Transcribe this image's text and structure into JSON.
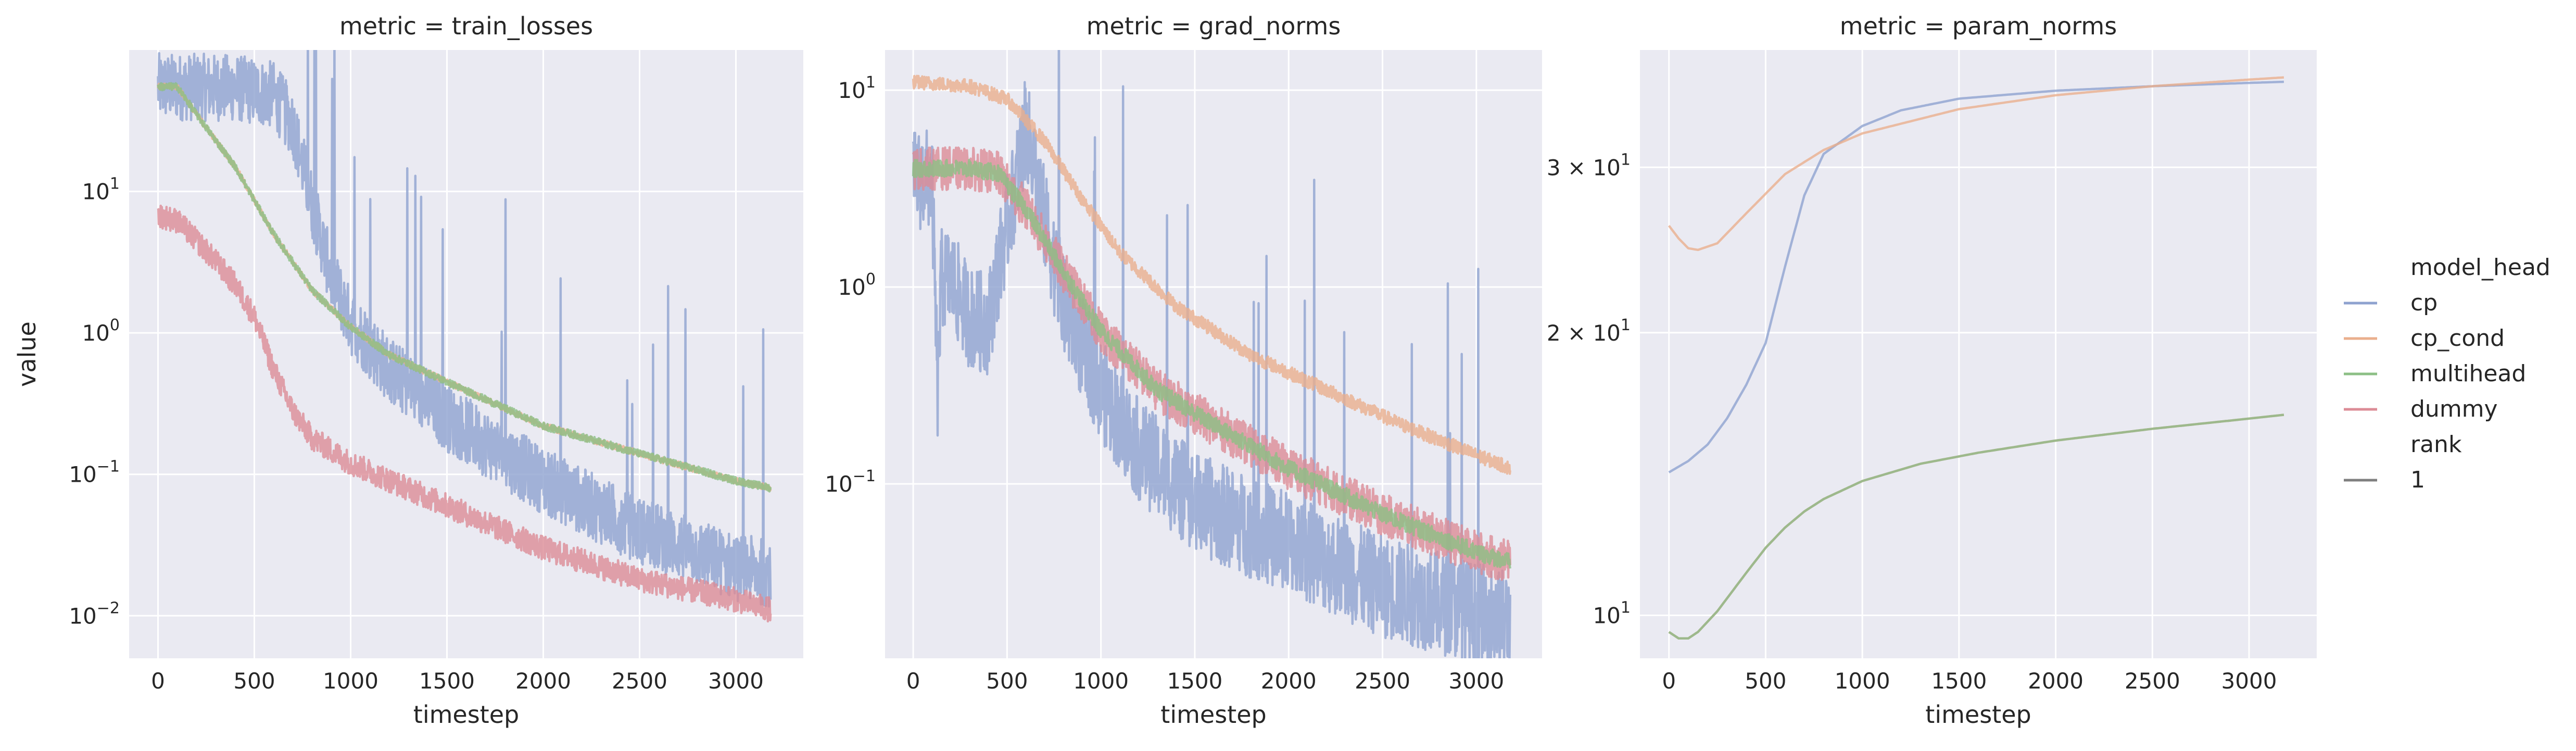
{
  "figure": {
    "panel_title_prefix": "metric = ",
    "legend": {
      "hue_title": "model_head",
      "hue_items": [
        {
          "label": "cp",
          "color": "#8ea2cf"
        },
        {
          "label": "cp_cond",
          "color": "#eaaf8d"
        },
        {
          "label": "multihead",
          "color": "#8cbf85"
        },
        {
          "label": "dummy",
          "color": "#dc8c96"
        }
      ],
      "style_title": "rank",
      "style_items": [
        {
          "label": "1",
          "color": "#7f7f7f"
        }
      ],
      "placement": "right"
    },
    "background": "#eaeaf2",
    "grid_color": "#ffffff"
  },
  "chart_data": [
    {
      "type": "line",
      "title": "metric = train_losses",
      "metric": "train_losses",
      "xlabel": "timestep",
      "ylabel": "value",
      "yscale": "log",
      "xlim": [
        -150,
        3350
      ],
      "ylim": [
        0.005,
        100
      ],
      "xticks": [
        0,
        500,
        1000,
        1500,
        2000,
        2500,
        3000
      ],
      "yticks": [
        {
          "value": 0.01,
          "mant": "",
          "base": "10",
          "exp": "−2"
        },
        {
          "value": 0.1,
          "mant": "",
          "base": "10",
          "exp": "−1"
        },
        {
          "value": 1,
          "mant": "",
          "base": "10",
          "exp": "0"
        },
        {
          "value": 10,
          "mant": "",
          "base": "10",
          "exp": "1"
        }
      ],
      "grid": true,
      "series": [
        {
          "name": "cp",
          "color": "#8ea2cf",
          "x": [
            0,
            400,
            600,
            700,
            800,
            900,
            1000,
            1200,
            1500,
            2000,
            2500,
            3000,
            3180
          ],
          "y": [
            55,
            54,
            48,
            30,
            8,
            2.5,
            1.2,
            0.55,
            0.25,
            0.09,
            0.04,
            0.022,
            0.02
          ],
          "noise": 0.55,
          "spikes": true
        },
        {
          "name": "cp_cond",
          "color": "#eaaf8d",
          "x": [
            0,
            100,
            200,
            400,
            600,
            800,
            1000,
            1200,
            1500,
            2000,
            2500,
            3000,
            3180
          ],
          "y": [
            55,
            55,
            35,
            15,
            5,
            2,
            1.1,
            0.7,
            0.45,
            0.22,
            0.14,
            0.09,
            0.08
          ],
          "noise": 0.05,
          "spikes": false
        },
        {
          "name": "multihead",
          "color": "#8cbf85",
          "x": [
            0,
            100,
            200,
            400,
            600,
            800,
            1000,
            1200,
            1500,
            2000,
            2500,
            3000,
            3180
          ],
          "y": [
            55,
            55,
            35,
            15,
            5,
            2,
            1.1,
            0.7,
            0.45,
            0.22,
            0.14,
            0.09,
            0.08
          ],
          "noise": 0.06,
          "spikes": false
        },
        {
          "name": "dummy",
          "color": "#dc8c96",
          "x": [
            0,
            100,
            200,
            300,
            400,
            500,
            600,
            700,
            800,
            1000,
            1500,
            2000,
            2500,
            3000,
            3180
          ],
          "y": [
            6.8,
            6.2,
            4.5,
            3.2,
            2.2,
            1.3,
            0.55,
            0.28,
            0.18,
            0.12,
            0.06,
            0.03,
            0.018,
            0.013,
            0.011
          ],
          "noise": 0.2,
          "spikes": false
        }
      ]
    },
    {
      "type": "line",
      "title": "metric = grad_norms",
      "metric": "grad_norms",
      "xlabel": "timestep",
      "ylabel": "",
      "yscale": "log",
      "xlim": [
        -150,
        3350
      ],
      "ylim": [
        0.013,
        16
      ],
      "xticks": [
        0,
        500,
        1000,
        1500,
        2000,
        2500,
        3000
      ],
      "yticks": [
        {
          "value": 0.1,
          "mant": "",
          "base": "10",
          "exp": "−1"
        },
        {
          "value": 1,
          "mant": "",
          "base": "10",
          "exp": "0"
        },
        {
          "value": 10,
          "mant": "",
          "base": "10",
          "exp": "1"
        }
      ],
      "grid": true,
      "series": [
        {
          "name": "cp",
          "color": "#8ea2cf",
          "x": [
            0,
            100,
            130,
            150,
            200,
            300,
            400,
            450,
            550,
            600,
            650,
            700,
            800,
            1000,
            1200,
            1500,
            2000,
            2500,
            3000,
            3180
          ],
          "y": [
            3.5,
            3.5,
            0.3,
            1.1,
            1.1,
            0.7,
            0.65,
            1.2,
            3.5,
            6.5,
            4,
            2.2,
            0.8,
            0.3,
            0.15,
            0.08,
            0.05,
            0.03,
            0.022,
            0.02
          ],
          "noise": 0.6,
          "spikes": true
        },
        {
          "name": "cp_cond",
          "color": "#eaaf8d",
          "x": [
            0,
            300,
            500,
            700,
            900,
            1100,
            1400,
            1800,
            2200,
            2600,
            3000,
            3180
          ],
          "y": [
            11,
            10.5,
            9,
            5.5,
            2.8,
            1.5,
            0.8,
            0.45,
            0.3,
            0.2,
            0.14,
            0.12
          ],
          "noise": 0.08,
          "spikes": false
        },
        {
          "name": "dummy",
          "color": "#dc8c96",
          "x": [
            0,
            300,
            450,
            600,
            800,
            1000,
            1300,
            1600,
            2000,
            2500,
            3000,
            3180
          ],
          "y": [
            4,
            4,
            3.8,
            2.5,
            1.2,
            0.6,
            0.3,
            0.2,
            0.12,
            0.07,
            0.045,
            0.04
          ],
          "noise": 0.25,
          "spikes": false
        },
        {
          "name": "multihead",
          "color": "#8cbf85",
          "x": [
            0,
            300,
            450,
            600,
            800,
            1000,
            1300,
            1600,
            2000,
            2500,
            3000,
            3180
          ],
          "y": [
            4,
            4,
            3.8,
            2.5,
            1.2,
            0.6,
            0.3,
            0.2,
            0.12,
            0.07,
            0.045,
            0.04
          ],
          "noise": 0.1,
          "spikes": false
        }
      ]
    },
    {
      "type": "line",
      "title": "metric = param_norms",
      "metric": "param_norms",
      "xlabel": "timestep",
      "ylabel": "",
      "yscale": "log",
      "xlim": [
        -150,
        3350
      ],
      "ylim": [
        9,
        40
      ],
      "xticks": [
        0,
        500,
        1000,
        1500,
        2000,
        2500,
        3000
      ],
      "yticks": [
        {
          "value": 10,
          "mant": "",
          "base": "10",
          "exp": "1"
        },
        {
          "value": 20,
          "mant": "2 × ",
          "base": "10",
          "exp": "1"
        },
        {
          "value": 30,
          "mant": "3 × ",
          "base": "10",
          "exp": "1"
        }
      ],
      "grid": true,
      "series": [
        {
          "name": "cp",
          "color": "#8ea2cf",
          "x": [
            0,
            100,
            200,
            300,
            400,
            500,
            600,
            700,
            800,
            1000,
            1200,
            1500,
            2000,
            2500,
            3000,
            3180
          ],
          "y": [
            14.2,
            14.6,
            15.2,
            16.2,
            17.6,
            19.5,
            23.5,
            28,
            31,
            33.2,
            34.5,
            35.5,
            36.2,
            36.6,
            36.9,
            37
          ],
          "noise": 0,
          "spikes": false
        },
        {
          "name": "cp_cond",
          "color": "#eaaf8d",
          "x": [
            0,
            50,
            100,
            150,
            250,
            400,
            600,
            800,
            1000,
            1500,
            2000,
            2500,
            3000,
            3180
          ],
          "y": [
            26,
            25.2,
            24.6,
            24.5,
            24.9,
            26.8,
            29.5,
            31.3,
            32.6,
            34.6,
            35.8,
            36.6,
            37.2,
            37.4
          ],
          "noise": 0,
          "spikes": false
        },
        {
          "name": "dummy",
          "color": "#dc8c96",
          "x": [
            0,
            50,
            100,
            150,
            250,
            400,
            500,
            600,
            700,
            800,
            1000,
            1300,
            1600,
            2000,
            2500,
            3000,
            3180
          ],
          "y": [
            9.6,
            9.45,
            9.45,
            9.6,
            10.1,
            11.1,
            11.8,
            12.4,
            12.9,
            13.3,
            13.9,
            14.5,
            14.9,
            15.35,
            15.8,
            16.2,
            16.35
          ],
          "noise": 0,
          "spikes": false
        },
        {
          "name": "multihead",
          "color": "#8cbf85",
          "x": [
            0,
            50,
            100,
            150,
            250,
            400,
            500,
            600,
            700,
            800,
            1000,
            1300,
            1600,
            2000,
            2500,
            3000,
            3180
          ],
          "y": [
            9.6,
            9.45,
            9.45,
            9.6,
            10.1,
            11.1,
            11.8,
            12.4,
            12.9,
            13.3,
            13.9,
            14.5,
            14.9,
            15.35,
            15.8,
            16.2,
            16.35
          ],
          "noise": 0,
          "spikes": false
        }
      ]
    }
  ]
}
